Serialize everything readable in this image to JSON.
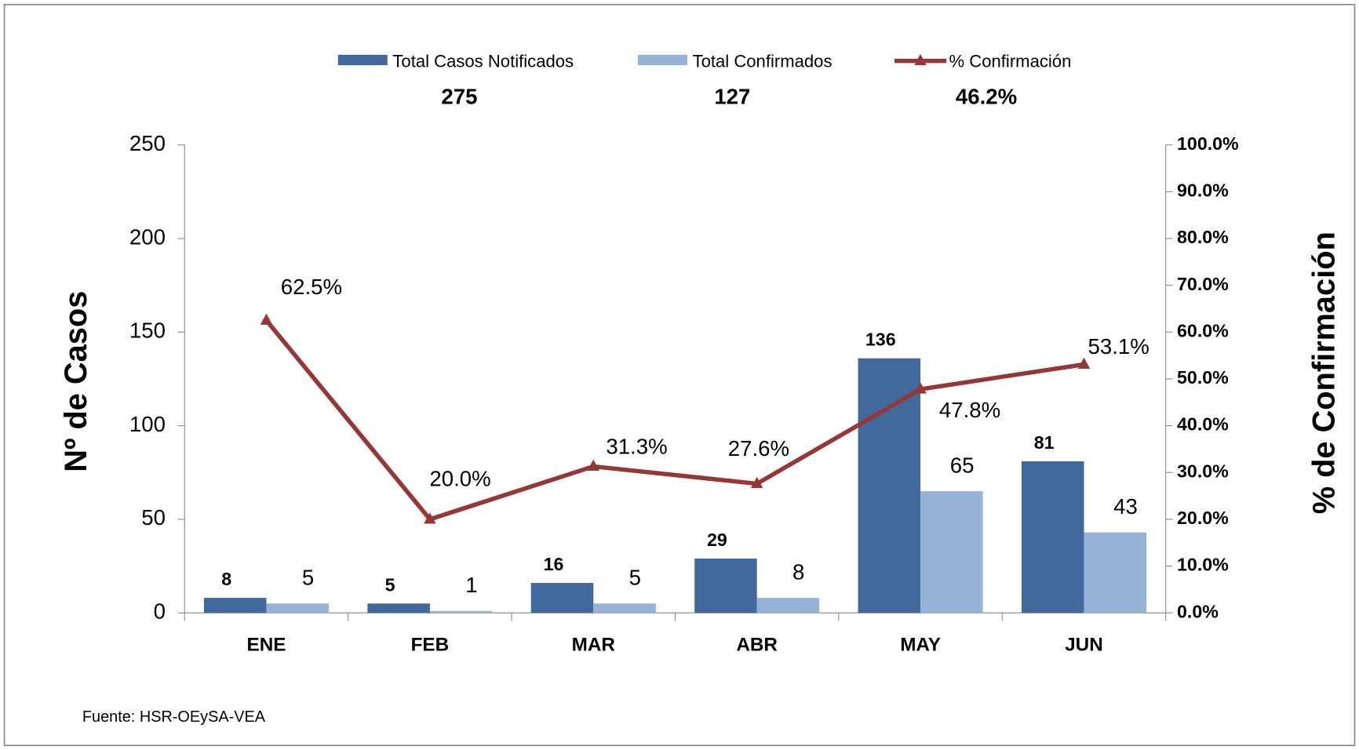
{
  "chart_data": {
    "type": "bar",
    "categories": [
      "ENE",
      "FEB",
      "MAR",
      "ABR",
      "MAY",
      "JUN"
    ],
    "series": [
      {
        "name": "Total Casos Notificados",
        "color": "#41699b",
        "values": [
          8,
          5,
          16,
          29,
          136,
          81
        ],
        "total": 275
      },
      {
        "name": "Total Confirmados",
        "color": "#95b3d7",
        "values": [
          5,
          1,
          5,
          8,
          65,
          43
        ],
        "total": 127
      },
      {
        "name": "% Confirmación",
        "color": "#953735",
        "type": "line",
        "axis": "y2",
        "values": [
          62.5,
          20.0,
          31.3,
          27.6,
          47.8,
          53.1
        ],
        "value_labels": [
          "62.5%",
          "20.0%",
          "31.3%",
          "27.6%",
          "47.8%",
          "53.1%"
        ],
        "total": 46.2,
        "total_label": "46.2%"
      }
    ],
    "ylabel": "Nº  de  Casos",
    "y2label": "% de Confirmación",
    "ylim": [
      0,
      250
    ],
    "yticks": [
      0,
      50,
      100,
      150,
      200,
      250
    ],
    "y2lim": [
      0,
      100
    ],
    "y2ticks": [
      {
        "value": 0,
        "label": "0.0%"
      },
      {
        "value": 10,
        "label": "10.0%"
      },
      {
        "value": 20,
        "label": "20.0%"
      },
      {
        "value": 30,
        "label": "30.0%"
      },
      {
        "value": 40,
        "label": "40.0%"
      },
      {
        "value": 50,
        "label": "50.0%"
      },
      {
        "value": 60,
        "label": "60.0%"
      },
      {
        "value": 70,
        "label": "70.0%"
      },
      {
        "value": 80,
        "label": "80.0%"
      },
      {
        "value": 90,
        "label": "90.0%"
      },
      {
        "value": 100,
        "label": "100.0%"
      }
    ],
    "source": "Fuente: HSR-OEySA-VEA"
  }
}
